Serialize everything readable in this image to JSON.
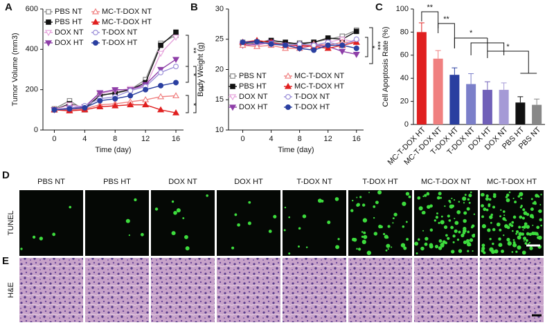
{
  "chart_data": [
    {
      "type": "line",
      "panel": "A",
      "y_label": "Tumor Volume (mm3)",
      "x_label": "Time (day)",
      "x": [
        0,
        2,
        4,
        6,
        8,
        10,
        12,
        14,
        16
      ],
      "xlim": [
        -1.5,
        17
      ],
      "xticks": [
        0,
        4,
        8,
        12,
        16
      ],
      "ylim": [
        0,
        600
      ],
      "yticks": [
        0,
        200,
        400,
        600
      ],
      "annotations": [
        "**",
        "*",
        "**",
        "*"
      ],
      "series": [
        {
          "name": "PBS NT",
          "color": "#888888",
          "marker": "square",
          "filled": false,
          "values": [
            105,
            145,
            100,
            175,
            180,
            200,
            250,
            430,
            470
          ]
        },
        {
          "name": "PBS HT",
          "color": "#111111",
          "marker": "square",
          "filled": true,
          "values": [
            100,
            130,
            110,
            170,
            185,
            200,
            235,
            420,
            485
          ]
        },
        {
          "name": "DOX NT",
          "color": "#e6a3dc",
          "marker": "triangle-down",
          "filled": false,
          "values": [
            100,
            125,
            115,
            180,
            195,
            205,
            215,
            380,
            460
          ]
        },
        {
          "name": "DOX HT",
          "color": "#8e3fa8",
          "marker": "triangle-down",
          "filled": true,
          "values": [
            100,
            110,
            115,
            185,
            200,
            200,
            225,
            300,
            350
          ]
        },
        {
          "name": "MC-T-DOX NT",
          "color": "#f08080",
          "marker": "triangle",
          "filled": false,
          "values": [
            100,
            100,
            105,
            125,
            130,
            140,
            150,
            165,
            170
          ]
        },
        {
          "name": "MC-T-DOX HT",
          "color": "#e02020",
          "marker": "triangle",
          "filled": true,
          "values": [
            100,
            95,
            100,
            115,
            120,
            125,
            125,
            100,
            85
          ]
        },
        {
          "name": "T-DOX NT",
          "color": "#9b8fd8",
          "marker": "circle",
          "filled": false,
          "values": [
            100,
            110,
            120,
            155,
            165,
            195,
            215,
            285,
            315
          ]
        },
        {
          "name": "T-DOX HT",
          "color": "#2a3fa0",
          "marker": "circle",
          "filled": true,
          "values": [
            100,
            105,
            110,
            145,
            155,
            170,
            200,
            220,
            235
          ]
        }
      ]
    },
    {
      "type": "line",
      "panel": "B",
      "y_label": "Body Weight (g)",
      "x_label": "Time (day)",
      "x": [
        0,
        2,
        4,
        6,
        8,
        10,
        12,
        14,
        16
      ],
      "xlim": [
        -2,
        17
      ],
      "xticks": [
        0,
        4,
        8,
        12,
        16
      ],
      "ylim": [
        10,
        30
      ],
      "yticks": [
        10,
        15,
        20,
        25,
        30
      ],
      "annotations": [
        "***",
        "*"
      ],
      "series": [
        {
          "name": "PBS NT",
          "color": "#888888",
          "marker": "square",
          "filled": false,
          "values": [
            24.5,
            24.3,
            24.5,
            24.2,
            24.4,
            24.5,
            25,
            25.5,
            26.5
          ]
        },
        {
          "name": "PBS HT",
          "color": "#111111",
          "marker": "square",
          "filled": true,
          "values": [
            24.3,
            24.5,
            24.8,
            24.5,
            24.2,
            24.5,
            25.2,
            25,
            26.3
          ]
        },
        {
          "name": "DOX NT",
          "color": "#e6a3dc",
          "marker": "triangle-down",
          "filled": false,
          "values": [
            24.2,
            24,
            24.5,
            24,
            23.8,
            24,
            24.5,
            25,
            24.5
          ]
        },
        {
          "name": "DOX HT",
          "color": "#8e3fa8",
          "marker": "triangle-down",
          "filled": true,
          "values": [
            24,
            24.2,
            24.5,
            24,
            23.5,
            24,
            23.8,
            23,
            22.5
          ]
        },
        {
          "name": "MC-T-DOX NT",
          "color": "#f08080",
          "marker": "triangle",
          "filled": false,
          "values": [
            24,
            23.8,
            24,
            23.5,
            23.5,
            24.2,
            24,
            24.5,
            24.5
          ]
        },
        {
          "name": "MC-T-DOX HT",
          "color": "#e02020",
          "marker": "triangle",
          "filled": true,
          "values": [
            24.5,
            24.8,
            24.5,
            24,
            24,
            23.8,
            23.5,
            24,
            24.5
          ]
        },
        {
          "name": "T-DOX NT",
          "color": "#9b8fd8",
          "marker": "circle",
          "filled": false,
          "values": [
            24.5,
            24.5,
            24.3,
            24,
            24.2,
            24,
            24.5,
            24,
            25
          ]
        },
        {
          "name": "T-DOX HT",
          "color": "#2a3fa0",
          "marker": "circle",
          "filled": true,
          "values": [
            24.5,
            24.6,
            24.2,
            24,
            23.5,
            23.2,
            24,
            24,
            23.5
          ]
        }
      ]
    },
    {
      "type": "bar",
      "panel": "C",
      "y_label": "Cell Apoptosis Rate (%)",
      "categories": [
        "MC-T-DOX HT",
        "MC-T-DOX NT",
        "T-DOX HT",
        "T-DOX NT",
        "DOX HT",
        "DOX NT",
        "PBS HT",
        "PBS NT"
      ],
      "values": [
        80,
        57,
        43,
        35,
        30,
        30,
        19,
        17
      ],
      "errors": [
        8,
        7,
        6,
        9,
        7,
        6,
        5,
        5
      ],
      "colors": [
        "#e02020",
        "#f08080",
        "#2a3fa0",
        "#7b7fc9",
        "#7060b8",
        "#a59ad6",
        "#111111",
        "#888888"
      ],
      "ylim": [
        0,
        100
      ],
      "yticks": [
        0,
        20,
        40,
        60,
        80,
        100
      ],
      "annotations": [
        "**",
        "**",
        "*",
        "*"
      ]
    }
  ],
  "image_grid": {
    "panels": [
      "D",
      "E"
    ],
    "rows": [
      "TUNEL",
      "H&E"
    ],
    "columns": [
      "PBS NT",
      "PBS HT",
      "DOX NT",
      "DOX HT",
      "T-DOX NT",
      "T-DOX HT",
      "MC-T-DOX NT",
      "MC-T-DOX HT"
    ]
  }
}
